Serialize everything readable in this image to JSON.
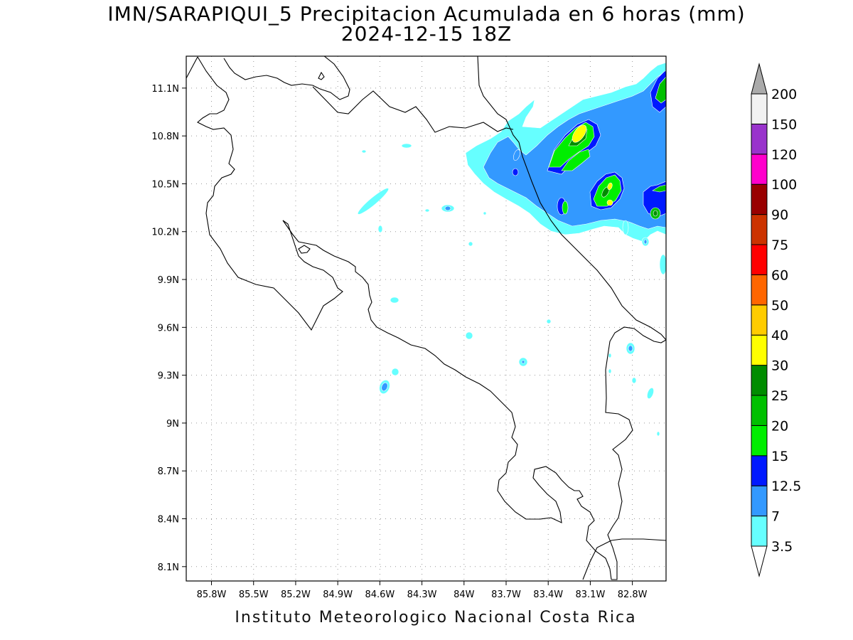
{
  "map": {
    "title_line1": "IMN/SARAPIQUI_5 Precipitacion Acumulada en 6 horas (mm)",
    "title_line2": "2024-12-15 18Z",
    "footer": "Instituto Meteorologico Nacional Costa Rica",
    "lon_labels": [
      "85.8W",
      "85.5W",
      "85.2W",
      "84.9W",
      "84.6W",
      "84.3W",
      "84W",
      "83.7W",
      "83.4W",
      "83.1W",
      "82.8W"
    ],
    "lon_values": [
      -85.8,
      -85.5,
      -85.2,
      -84.9,
      -84.6,
      -84.3,
      -84.0,
      -83.7,
      -83.4,
      -83.1,
      -82.8
    ],
    "lat_labels": [
      "11.1N",
      "10.8N",
      "10.5N",
      "10.2N",
      "9.9N",
      "9.6N",
      "9.3N",
      "9N",
      "8.7N",
      "8.4N",
      "8.1N"
    ],
    "lat_values": [
      11.1,
      10.8,
      10.5,
      10.2,
      9.9,
      9.6,
      9.3,
      9.0,
      8.7,
      8.4,
      8.1
    ],
    "lon_range": [
      -85.98,
      -82.56
    ],
    "lat_range": [
      8.01,
      11.3
    ],
    "grid": true,
    "grid_style": "dotted",
    "colorbar": {
      "levels": [
        "3.5",
        "7",
        "12.5",
        "15",
        "20",
        "25",
        "30",
        "40",
        "50",
        "60",
        "75",
        "90",
        "100",
        "120",
        "150",
        "200"
      ],
      "colors": [
        "#ffffff",
        "#66ffff",
        "#3399ff",
        "#0019ff",
        "#00ee00",
        "#00c000",
        "#008c00",
        "#ffff00",
        "#ffcc00",
        "#ff6600",
        "#ff0000",
        "#cc3300",
        "#990000",
        "#ff00cc",
        "#9933cc",
        "#f2f2f2",
        "#aaaaaa"
      ],
      "extends": "both"
    },
    "precip_colors": {
      "c3_5": "#66ffff",
      "c7": "#3399ff",
      "c12_5": "#0019ff",
      "c15": "#00ee00",
      "c20": "#00c000",
      "c25": "#008c00",
      "c30": "#ffff00"
    }
  }
}
